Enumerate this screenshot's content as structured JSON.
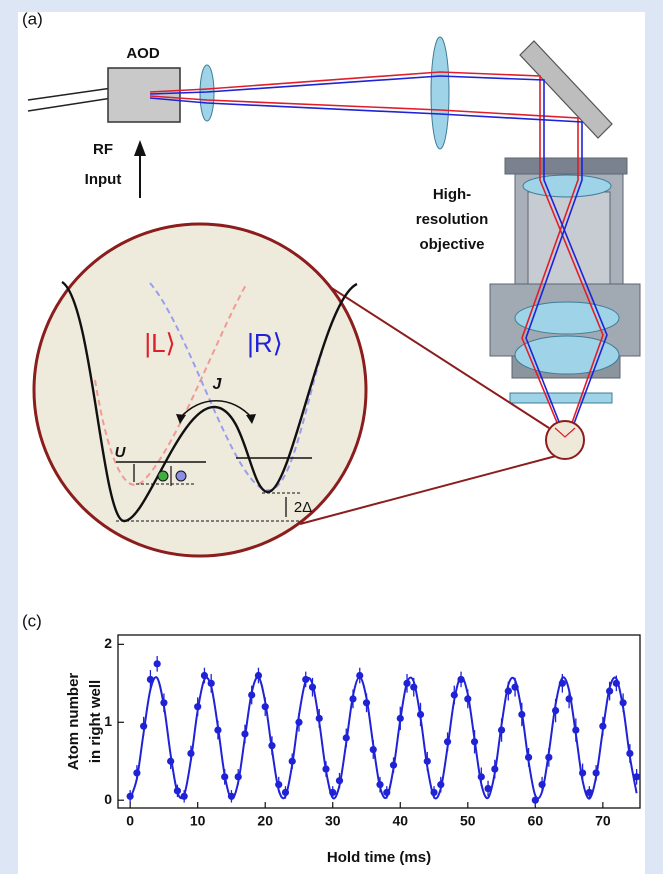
{
  "panel_a": {
    "label": "(a)",
    "aod": "AOD",
    "rf_input": [
      "RF",
      "Input"
    ],
    "objective": [
      "High-",
      "resolution",
      "objective"
    ],
    "left_state": "|L⟩",
    "right_state": "|R⟩",
    "tunneling": "J",
    "interaction": "U",
    "offset": "2Δ"
  },
  "chart_data": {
    "type": "scatter",
    "panel_label": "(c)",
    "x_label": "Hold time (ms)",
    "y_label": [
      "Atom number",
      "in right well"
    ],
    "x": [
      0,
      1,
      2,
      3,
      4,
      5,
      6,
      7,
      8,
      9,
      10,
      11,
      12,
      13,
      14,
      15,
      16,
      17,
      18,
      19,
      20,
      21,
      22,
      23,
      24,
      25,
      26,
      27,
      28,
      29,
      30,
      31,
      32,
      33,
      34,
      35,
      36,
      37,
      38,
      39,
      40,
      41,
      42,
      43,
      44,
      45,
      46,
      47,
      48,
      49,
      50,
      51,
      52,
      53,
      54,
      55,
      56,
      57,
      58,
      59,
      60,
      61,
      62,
      63,
      64,
      65,
      66,
      67,
      68,
      69,
      70,
      71,
      72,
      73,
      74,
      75
    ],
    "series": [
      {
        "style": "points",
        "color": "#1f22d6",
        "values": [
          0.05,
          0.35,
          0.95,
          1.55,
          1.75,
          1.25,
          0.5,
          0.12,
          0.05,
          0.6,
          1.2,
          1.6,
          1.5,
          0.9,
          0.3,
          0.05,
          0.3,
          0.85,
          1.35,
          1.6,
          1.2,
          0.7,
          0.2,
          0.1,
          0.5,
          1.0,
          1.55,
          1.45,
          1.05,
          0.4,
          0.1,
          0.25,
          0.8,
          1.3,
          1.6,
          1.25,
          0.65,
          0.2,
          0.1,
          0.45,
          1.05,
          1.5,
          1.45,
          1.1,
          0.5,
          0.1,
          0.2,
          0.75,
          1.35,
          1.55,
          1.3,
          0.75,
          0.3,
          0.15,
          0.4,
          0.9,
          1.4,
          1.45,
          1.1,
          0.55,
          0.0,
          0.2,
          0.55,
          1.15,
          1.5,
          1.3,
          0.9,
          0.35,
          0.1,
          0.35,
          0.95,
          1.4,
          1.5,
          1.25,
          0.6,
          0.3
        ],
        "errors": [
          0.08,
          0.1,
          0.12,
          0.12,
          0.1,
          0.12,
          0.1,
          0.08,
          0.08,
          0.1,
          0.12,
          0.1,
          0.12,
          0.12,
          0.1,
          0.08,
          0.1,
          0.12,
          0.12,
          0.1,
          0.12,
          0.12,
          0.1,
          0.08,
          0.1,
          0.12,
          0.1,
          0.12,
          0.12,
          0.1,
          0.08,
          0.1,
          0.12,
          0.12,
          0.1,
          0.12,
          0.12,
          0.1,
          0.08,
          0.1,
          0.15,
          0.12,
          0.12,
          0.15,
          0.12,
          0.08,
          0.1,
          0.12,
          0.12,
          0.1,
          0.12,
          0.15,
          0.12,
          0.1,
          0.12,
          0.15,
          0.12,
          0.12,
          0.15,
          0.12,
          0.08,
          0.1,
          0.12,
          0.15,
          0.12,
          0.12,
          0.15,
          0.12,
          0.08,
          0.1,
          0.12,
          0.12,
          0.1,
          0.12,
          0.12,
          0.1
        ]
      },
      {
        "style": "line",
        "color": "#1f22d6",
        "values": [
          0.02,
          0.28,
          0.87,
          1.42,
          1.57,
          1.21,
          0.58,
          0.1,
          0.07,
          0.52,
          1.15,
          1.55,
          1.46,
          0.94,
          0.32,
          0.02,
          0.23,
          0.81,
          1.38,
          1.58,
          1.26,
          0.65,
          0.13,
          0.05,
          0.46,
          1.09,
          1.53,
          1.49,
          1.0,
          0.38,
          0.03,
          0.19,
          0.74,
          1.34,
          1.58,
          1.31,
          0.71,
          0.17,
          0.04,
          0.41,
          1.03,
          1.51,
          1.52,
          1.06,
          0.43,
          0.04,
          0.15,
          0.68,
          1.29,
          1.58,
          1.36,
          0.78,
          0.21,
          0.03,
          0.35,
          0.97,
          1.48,
          1.54,
          1.13,
          0.5,
          0.06,
          0.11,
          0.61,
          1.23,
          1.57,
          1.41,
          0.85,
          0.25,
          0.02,
          0.3,
          0.9,
          1.44,
          1.56,
          1.19,
          0.56,
          0.09
        ]
      }
    ],
    "xlim": [
      -1.8,
      75.5
    ],
    "ylim": [
      -0.1,
      2.12
    ],
    "xticks": [
      0,
      10,
      20,
      30,
      40,
      50,
      60,
      70
    ],
    "yticks": [
      0,
      1,
      2
    ],
    "grid": false
  }
}
